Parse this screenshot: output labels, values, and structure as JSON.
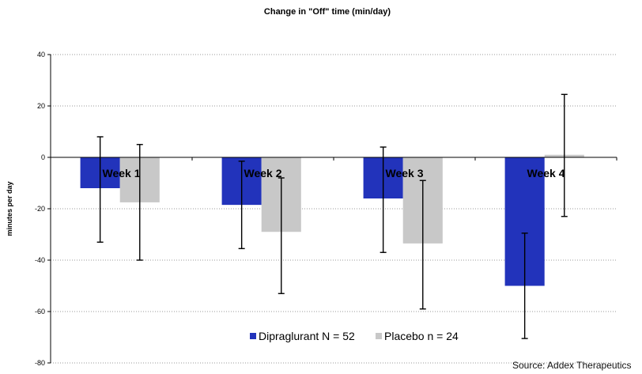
{
  "chart_data": {
    "type": "bar",
    "title": "Change in \"Off\" time (min/day)",
    "ylabel": "minutes per day",
    "xlabel": "",
    "ylim": [
      -80,
      40
    ],
    "yticks": [
      40,
      20,
      0,
      -20,
      -40,
      -60,
      -80
    ],
    "grid": "horizontal dotted",
    "legend_position": "bottom-center",
    "categories": [
      "Week 1",
      "Week 2",
      "Week 3",
      "Week 4"
    ],
    "series": [
      {
        "name": "Dipraglurant N = 52",
        "color": "#2233bb",
        "values": [
          -12,
          -18.5,
          -16,
          -50
        ],
        "error_low": [
          -33,
          -35.5,
          -37,
          -70.5
        ],
        "error_high": [
          8,
          -1.5,
          4,
          -29.5
        ]
      },
      {
        "name": "Placebo n = 24",
        "color": "#c8c8c8",
        "values": [
          -17.5,
          -29,
          -33.5,
          1
        ],
        "error_low": [
          -40,
          -53,
          -59,
          -23
        ],
        "error_high": [
          5,
          -8,
          -9,
          24.5
        ]
      }
    ]
  },
  "source": "Source: Addex Therapeutics"
}
